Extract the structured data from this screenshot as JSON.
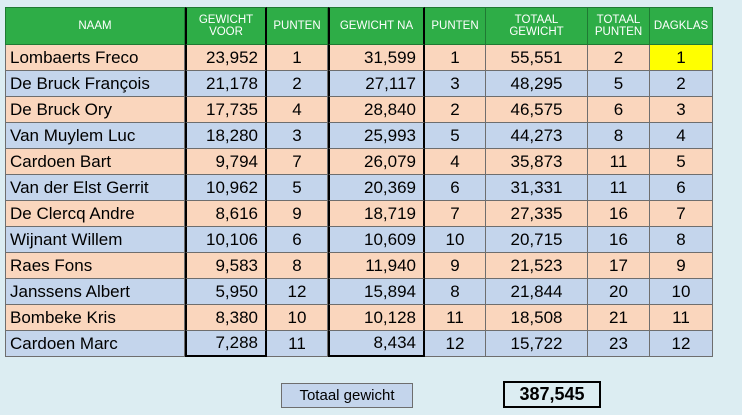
{
  "headers": {
    "naam": "NAAM",
    "gewicht_voor": "GEWICHT VOOR",
    "punten1": "PUNTEN",
    "gewicht_na": "GEWICHT NA",
    "punten2": "PUNTEN",
    "totaal_gewicht": "TOTAAL GEWICHT",
    "totaal_punten": "TOTAAL PUNTEN",
    "dagklas": "DAGKLAS"
  },
  "rows": [
    {
      "naam": "Lombaerts Freco",
      "gewicht_voor": "23,952",
      "punten1": "1",
      "gewicht_na": "31,599",
      "punten2": "1",
      "totaal_gewicht": "55,551",
      "totaal_punten": "2",
      "dagklas": "1"
    },
    {
      "naam": "De Bruck François",
      "gewicht_voor": "21,178",
      "punten1": "2",
      "gewicht_na": "27,117",
      "punten2": "3",
      "totaal_gewicht": "48,295",
      "totaal_punten": "5",
      "dagklas": "2"
    },
    {
      "naam": "De Bruck Ory",
      "gewicht_voor": "17,735",
      "punten1": "4",
      "gewicht_na": "28,840",
      "punten2": "2",
      "totaal_gewicht": "46,575",
      "totaal_punten": "6",
      "dagklas": "3"
    },
    {
      "naam": "Van Muylem Luc",
      "gewicht_voor": "18,280",
      "punten1": "3",
      "gewicht_na": "25,993",
      "punten2": "5",
      "totaal_gewicht": "44,273",
      "totaal_punten": "8",
      "dagklas": "4"
    },
    {
      "naam": "Cardoen Bart",
      "gewicht_voor": "9,794",
      "punten1": "7",
      "gewicht_na": "26,079",
      "punten2": "4",
      "totaal_gewicht": "35,873",
      "totaal_punten": "11",
      "dagklas": "5"
    },
    {
      "naam": "Van der Elst Gerrit",
      "gewicht_voor": "10,962",
      "punten1": "5",
      "gewicht_na": "20,369",
      "punten2": "6",
      "totaal_gewicht": "31,331",
      "totaal_punten": "11",
      "dagklas": "6"
    },
    {
      "naam": "De Clercq Andre",
      "gewicht_voor": "8,616",
      "punten1": "9",
      "gewicht_na": "18,719",
      "punten2": "7",
      "totaal_gewicht": "27,335",
      "totaal_punten": "16",
      "dagklas": "7"
    },
    {
      "naam": "Wijnant Willem",
      "gewicht_voor": "10,106",
      "punten1": "6",
      "gewicht_na": "10,609",
      "punten2": "10",
      "totaal_gewicht": "20,715",
      "totaal_punten": "16",
      "dagklas": "8"
    },
    {
      "naam": "Raes Fons",
      "gewicht_voor": "9,583",
      "punten1": "8",
      "gewicht_na": "11,940",
      "punten2": "9",
      "totaal_gewicht": "21,523",
      "totaal_punten": "17",
      "dagklas": "9"
    },
    {
      "naam": "Janssens Albert",
      "gewicht_voor": "5,950",
      "punten1": "12",
      "gewicht_na": "15,894",
      "punten2": "8",
      "totaal_gewicht": "21,844",
      "totaal_punten": "20",
      "dagklas": "10"
    },
    {
      "naam": "Bombeke Kris",
      "gewicht_voor": "8,380",
      "punten1": "10",
      "gewicht_na": "10,128",
      "punten2": "11",
      "totaal_gewicht": "18,508",
      "totaal_punten": "21",
      "dagklas": "11"
    },
    {
      "naam": "Cardoen Marc",
      "gewicht_voor": "7,288",
      "punten1": "11",
      "gewicht_na": "8,434",
      "punten2": "12",
      "totaal_gewicht": "15,722",
      "totaal_punten": "23",
      "dagklas": "12"
    }
  ],
  "totals": {
    "label": "Totaal gewicht",
    "value": "387,545"
  },
  "colors": {
    "header": "#2ead47",
    "row_odd": "#fad6bd",
    "row_even": "#c4d5ec",
    "highlight": "#ffff00",
    "background": "#dcedf2"
  }
}
